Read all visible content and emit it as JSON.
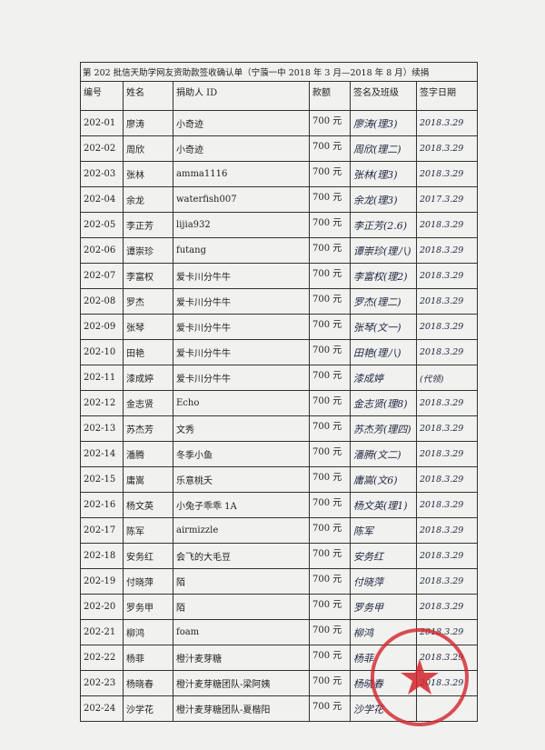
{
  "title": "第 202 批信天助学网友资助款签收确认单（宁蒗一中 2018 年 3 月—2018 年 8 月）续捐",
  "table": {
    "headers": [
      "编号",
      "姓名",
      "捐助人 ID",
      "款额",
      "签名及班级",
      "签字日期"
    ],
    "rows": [
      [
        "202-01",
        "廖涛",
        "小奇迹",
        "700 元",
        "廖涛(理3)",
        "2018.3.29"
      ],
      [
        "202-02",
        "周欣",
        "小奇迹",
        "700 元",
        "周欣(理二)",
        "2018.3.29"
      ],
      [
        "202-03",
        "张林",
        "amma1116",
        "700 元",
        "张林(理3)",
        "2018.3.29"
      ],
      [
        "202-04",
        "余龙",
        "waterfish007",
        "700 元",
        "余龙(理3)",
        "2017.3.29"
      ],
      [
        "202-05",
        "李正芳",
        "lijia932",
        "700 元",
        "李正芳(2.6)",
        "2018.3.29"
      ],
      [
        "202-06",
        "谭崇珍",
        "futang",
        "700 元",
        "谭崇珍(理八)",
        "2018.3.29"
      ],
      [
        "202-07",
        "李富权",
        "爱卡川分牛牛",
        "700 元",
        "李富权(理2)",
        "2018.3.29"
      ],
      [
        "202-08",
        "罗杰",
        "爱卡川分牛牛",
        "700 元",
        "罗杰(理二)",
        "2018.3.29"
      ],
      [
        "202-09",
        "张琴",
        "爱卡川分牛牛",
        "700 元",
        "张琴(文一)",
        "2018.3.29"
      ],
      [
        "202-10",
        "田艳",
        "爱卡川分牛牛",
        "700 元",
        "田艳(理八)",
        "2018.3.29"
      ],
      [
        "202-11",
        "漆成婷",
        "爱卡川分牛牛",
        "700 元",
        "漆成婷",
        "(代领)"
      ],
      [
        "202-12",
        "金志贤",
        "Echo",
        "700 元",
        "金志贤(理8)",
        "2018.3.29"
      ],
      [
        "202-13",
        "苏杰芳",
        "文秀",
        "700 元",
        "苏杰芳(理四)",
        "2018.3.29"
      ],
      [
        "202-14",
        "潘腾",
        "冬季小鱼",
        "700 元",
        "潘腾(文二)",
        "2018.3.29"
      ],
      [
        "202-15",
        "庸嵩",
        "乐意桃夭",
        "700 元",
        "庸嵩(文6)",
        "2018.3.29"
      ],
      [
        "202-16",
        "杨文英",
        "小兔子乖乖 1A",
        "700 元",
        "杨文英(理1)",
        "2018.3.29"
      ],
      [
        "202-17",
        "陈军",
        "airmizzle",
        "700 元",
        "陈军",
        "2018.3.29"
      ],
      [
        "202-18",
        "安务红",
        "会飞的大毛豆",
        "700 元",
        "安务红",
        "2018.3.29"
      ],
      [
        "202-19",
        "付晓萍",
        "陌",
        "700 元",
        "付晓萍",
        "2018.3.29"
      ],
      [
        "202-20",
        "罗务甲",
        "陌",
        "700 元",
        "罗务甲",
        "2018.3.29"
      ],
      [
        "202-21",
        "柳鸿",
        "foam",
        "700 元",
        "柳鸿",
        "2018.3.29"
      ],
      [
        "202-22",
        "杨菲",
        "橙汁麦芽糖",
        "700 元",
        "杨菲",
        "2018.3.29"
      ],
      [
        "202-23",
        "杨晓春",
        "橙汁麦芽糖团队-梁阿姨",
        "700 元",
        "杨晓春",
        "2018.3.29"
      ],
      [
        "202-24",
        "沙学花",
        "橙汁麦芽糖团队-夏楷阳",
        "700 元",
        "沙学花",
        null
      ]
    ]
  }
}
